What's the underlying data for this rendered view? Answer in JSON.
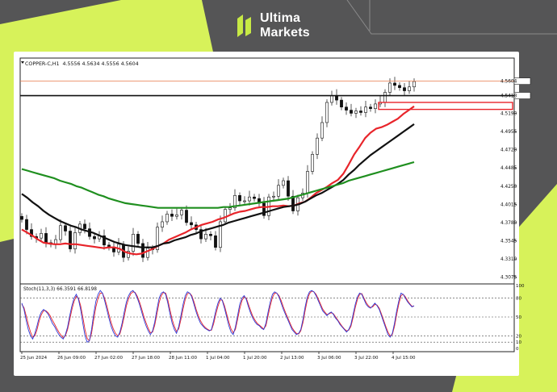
{
  "brand": {
    "line1": "Ultima",
    "line2": "Markets"
  },
  "colors": {
    "lime": "#d7f25a",
    "background": "#555556",
    "ma_fast": "#e8242a",
    "ma_mid": "#111111",
    "ma_slow": "#1f8f1f",
    "stoch_main": "#2d39d8",
    "stoch_signal": "#e8242a",
    "highlight_box": "#e8242a"
  },
  "chart_data": {
    "type": "line",
    "symbol": "COPPER-C,H1",
    "ohlc_header": "4.5556 4.5634 4.5556 4.5604",
    "price_axis": {
      "ticks": [
        "4.5190",
        "4.4955",
        "4.4720",
        "4.4485",
        "4.4250",
        "4.4015",
        "4.3780",
        "4.3545",
        "4.3310",
        "4.3075"
      ],
      "ylim": [
        4.303,
        4.585
      ]
    },
    "time_axis": [
      "25 Jun 2024",
      "26 Jun 09:00",
      "27 Jun 02:00",
      "27 Jun 18:00",
      "28 Jun 11:00",
      "1 Jul 04:00",
      "1 Jul 20:00",
      "2 Jul 13:00",
      "3 Jul 06:00",
      "3 Jul 22:00",
      "4 Jul 15:00"
    ],
    "price_close": [
      4.382,
      4.369,
      4.36,
      4.358,
      4.364,
      4.352,
      4.35,
      4.356,
      4.374,
      4.367,
      4.344,
      4.365,
      4.376,
      4.37,
      4.36,
      4.357,
      4.361,
      4.349,
      4.346,
      4.34,
      4.35,
      4.333,
      4.341,
      4.363,
      4.351,
      4.333,
      4.345,
      4.343,
      4.372,
      4.379,
      4.389,
      4.386,
      4.388,
      4.394,
      4.378,
      4.375,
      4.369,
      4.357,
      4.363,
      4.361,
      4.346,
      4.379,
      4.395,
      4.397,
      4.413,
      4.406,
      4.406,
      4.411,
      4.409,
      4.403,
      4.387,
      4.411,
      4.412,
      4.426,
      4.432,
      4.412,
      4.393,
      4.41,
      4.416,
      4.444,
      4.466,
      4.487,
      4.507,
      4.533,
      4.542,
      4.536,
      4.527,
      4.523,
      4.519,
      4.522,
      4.52,
      4.527,
      4.525,
      4.531,
      4.533,
      4.546,
      4.558,
      4.555,
      4.552,
      4.548,
      4.553,
      4.56
    ],
    "highlight_levels": {
      "current_price": "4.5604",
      "support_line": "4.5418",
      "zone_top": 4.533,
      "zone_bottom": 4.524
    },
    "series": [
      {
        "name": "",
        "type": "ma",
        "values": [
          4.369,
          4.365,
          4.361,
          4.356,
          4.352,
          4.351,
          4.35,
          4.35,
          4.351,
          4.35,
          4.35,
          4.349,
          4.348,
          4.347,
          4.346,
          4.345,
          4.346,
          4.346,
          4.344,
          4.34,
          4.338,
          4.337,
          4.338,
          4.341,
          4.344,
          4.348,
          4.351,
          4.356,
          4.359,
          4.362,
          4.365,
          4.369,
          4.372,
          4.375,
          4.377,
          4.379,
          4.382,
          4.384,
          4.387,
          4.39,
          4.392,
          4.393,
          4.395,
          4.397,
          4.398,
          4.398,
          4.399,
          4.399,
          4.4,
          4.399,
          4.4,
          4.403,
          4.405,
          4.41,
          4.416,
          4.42,
          4.424,
          4.429,
          4.433,
          4.441,
          4.453,
          4.466,
          4.476,
          4.487,
          4.494,
          4.499,
          4.501,
          4.504,
          4.508,
          4.512,
          4.518,
          4.523,
          4.528
        ]
      },
      {
        "name": "",
        "type": "ma",
        "values": [
          4.415,
          4.41,
          4.404,
          4.399,
          4.393,
          4.388,
          4.384,
          4.38,
          4.377,
          4.374,
          4.372,
          4.369,
          4.367,
          4.365,
          4.362,
          4.359,
          4.356,
          4.353,
          4.351,
          4.349,
          4.348,
          4.347,
          4.346,
          4.346,
          4.346,
          4.348,
          4.351,
          4.352,
          4.355,
          4.357,
          4.359,
          4.362,
          4.364,
          4.367,
          4.369,
          4.371,
          4.373,
          4.375,
          4.378,
          4.38,
          4.382,
          4.384,
          4.386,
          4.388,
          4.39,
          4.392,
          4.394,
          4.396,
          4.398,
          4.399,
          4.4,
          4.402,
          4.405,
          4.409,
          4.413,
          4.416,
          4.42,
          4.424,
          4.428,
          4.433,
          4.44,
          4.446,
          4.453,
          4.459,
          4.465,
          4.47,
          4.475,
          4.48,
          4.485,
          4.49,
          4.495,
          4.5,
          4.505
        ]
      },
      {
        "name": "",
        "type": "ma",
        "values": [
          4.447,
          4.445,
          4.443,
          4.441,
          4.439,
          4.437,
          4.435,
          4.432,
          4.43,
          4.428,
          4.425,
          4.423,
          4.42,
          4.417,
          4.414,
          4.412,
          4.409,
          4.407,
          4.405,
          4.403,
          4.402,
          4.401,
          4.4,
          4.399,
          4.398,
          4.397,
          4.397,
          4.397,
          4.397,
          4.397,
          4.397,
          4.397,
          4.397,
          4.397,
          4.397,
          4.397,
          4.397,
          4.398,
          4.398,
          4.399,
          4.4,
          4.401,
          4.402,
          4.403,
          4.404,
          4.405,
          4.406,
          4.407,
          4.408,
          4.409,
          4.411,
          4.413,
          4.415,
          4.417,
          4.419,
          4.421,
          4.423,
          4.425,
          4.427,
          4.429,
          4.432,
          4.434,
          4.436,
          4.438,
          4.44,
          4.442,
          4.444,
          4.446,
          4.448,
          4.45,
          4.452,
          4.454,
          4.456
        ]
      }
    ],
    "stoch": {
      "header": "Stoch(11,3,3) 66.3591 66.8198",
      "levels": [
        "100",
        "80",
        "50",
        "20",
        "10",
        "0"
      ],
      "main": [
        72,
        62,
        45,
        30,
        20,
        15,
        24,
        36,
        50,
        58,
        62,
        59,
        55,
        48,
        40,
        35,
        28,
        22,
        18,
        15,
        22,
        34,
        52,
        68,
        80,
        86,
        78,
        62,
        40,
        20,
        10,
        12,
        30,
        55,
        75,
        86,
        92,
        88,
        76,
        62,
        48,
        35,
        26,
        20,
        18,
        26,
        40,
        58,
        74,
        84,
        90,
        92,
        88,
        80,
        70,
        58,
        46,
        36,
        28,
        22,
        28,
        42,
        62,
        80,
        88,
        90,
        86,
        72,
        55,
        40,
        30,
        24,
        35,
        52,
        70,
        84,
        90,
        88,
        82,
        70,
        58,
        48,
        40,
        36,
        32,
        30,
        28,
        30,
        44,
        60,
        72,
        80,
        76,
        64,
        50,
        36,
        26,
        22,
        34,
        52,
        70,
        80,
        84,
        78,
        66,
        56,
        48,
        42,
        38,
        36,
        32,
        30,
        40,
        58,
        74,
        86,
        90,
        88,
        82,
        72,
        62,
        54,
        46,
        38,
        30,
        26,
        22,
        24,
        30,
        46,
        66,
        82,
        90,
        92,
        90,
        84,
        76,
        68,
        60,
        56,
        52,
        56,
        58,
        54,
        48,
        44,
        38,
        34,
        30,
        26,
        30,
        38,
        54,
        70,
        82,
        88,
        86,
        78,
        70,
        66,
        64,
        68,
        72,
        68,
        62,
        52,
        42,
        32,
        22,
        18,
        24,
        40,
        60,
        76,
        88,
        86,
        80,
        74,
        70,
        66,
        68
      ],
      "signal": [
        70,
        65,
        52,
        38,
        26,
        18,
        20,
        30,
        44,
        54,
        60,
        60,
        57,
        52,
        45,
        39,
        32,
        26,
        21,
        17,
        20,
        30,
        46,
        62,
        75,
        83,
        80,
        68,
        50,
        30,
        16,
        12,
        24,
        46,
        66,
        80,
        88,
        88,
        80,
        68,
        54,
        41,
        31,
        24,
        20,
        23,
        35,
        51,
        68,
        79,
        87,
        90,
        89,
        83,
        74,
        63,
        51,
        41,
        32,
        25,
        26,
        37,
        55,
        73,
        84,
        89,
        88,
        77,
        61,
        46,
        35,
        27,
        31,
        46,
        63,
        78,
        87,
        88,
        84,
        74,
        62,
        52,
        44,
        38,
        34,
        31,
        29,
        29,
        39,
        54,
        67,
        77,
        77,
        68,
        55,
        42,
        31,
        25,
        30,
        46,
        63,
        76,
        82,
        80,
        70,
        60,
        51,
        45,
        40,
        37,
        34,
        31,
        36,
        52,
        68,
        81,
        88,
        88,
        84,
        76,
        66,
        57,
        49,
        41,
        33,
        28,
        24,
        23,
        28,
        41,
        60,
        77,
        87,
        91,
        90,
        86,
        79,
        71,
        63,
        58,
        54,
        55,
        57,
        55,
        50,
        45,
        40,
        35,
        31,
        28,
        29,
        35,
        49,
        65,
        78,
        86,
        87,
        80,
        73,
        68,
        65,
        66,
        70,
        69,
        64,
        55,
        45,
        35,
        26,
        20,
        22,
        35,
        54,
        71,
        84,
        86,
        82,
        76,
        71,
        67,
        67
      ]
    }
  }
}
